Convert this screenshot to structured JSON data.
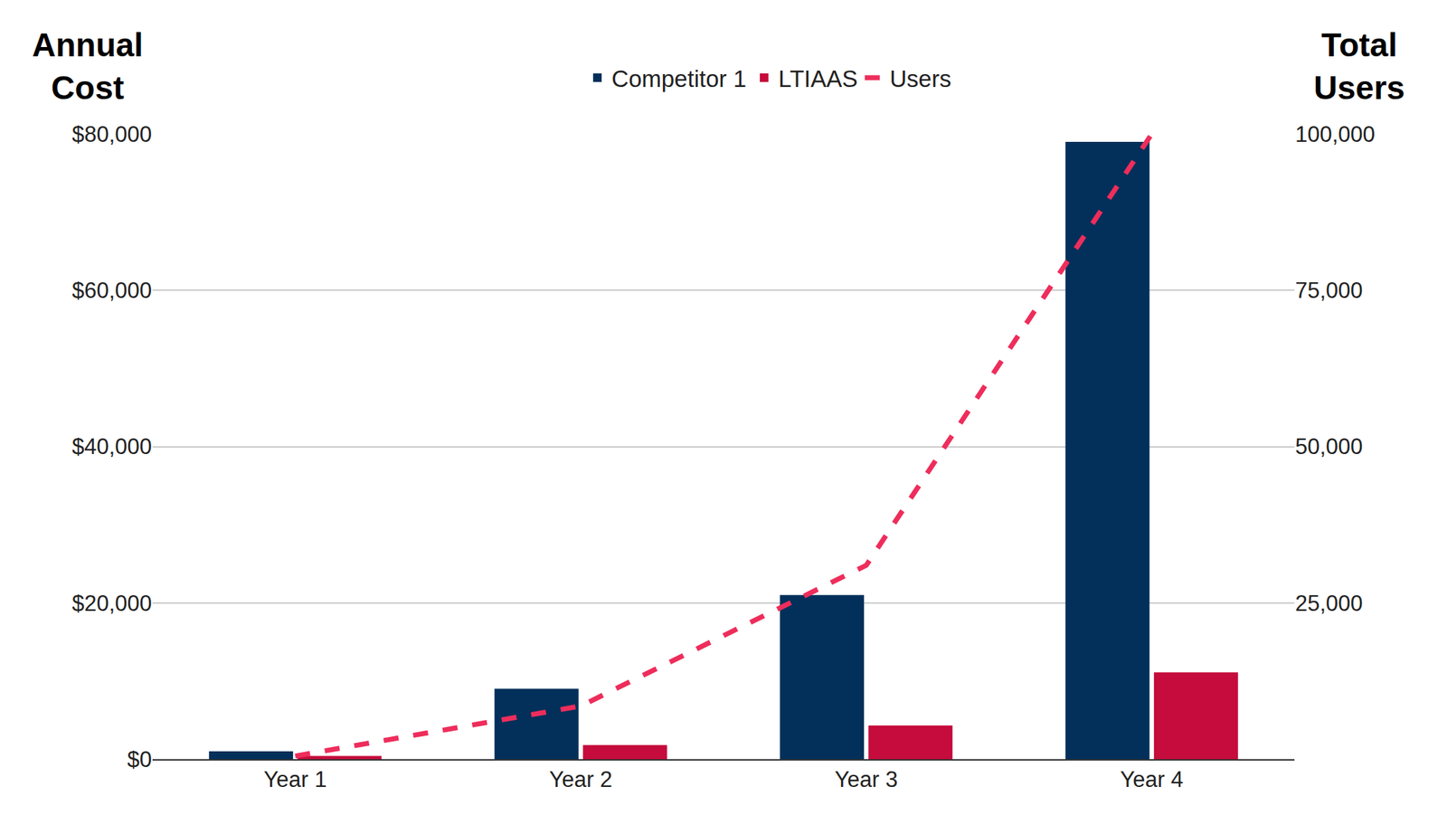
{
  "chart_data": {
    "type": "bar",
    "categories": [
      "Year 1",
      "Year 2",
      "Year 3",
      "Year 4"
    ],
    "series": [
      {
        "name": "Competitor 1",
        "color": "#03305a",
        "values": [
          1000,
          9000,
          21000,
          79000
        ]
      },
      {
        "name": "LTIAAS",
        "color": "#c50c3c",
        "values": [
          400,
          1800,
          4300,
          11100
        ]
      },
      {
        "name": "Users",
        "type": "line",
        "line_style": "dashed",
        "color": "#ee2d5b",
        "axis": "y2",
        "values": [
          500,
          8500,
          31000,
          100000
        ]
      }
    ],
    "y_label": "Annual Cost",
    "y2_label": "Total Users",
    "ylim": [
      0,
      80000
    ],
    "yticks": [
      {
        "value": 0,
        "label": "$0"
      },
      {
        "value": 20000,
        "label": "$20,000"
      },
      {
        "value": 40000,
        "label": "$40,000"
      },
      {
        "value": 60000,
        "label": "$60,000"
      },
      {
        "value": 80000,
        "label": "$80,000"
      }
    ],
    "y2lim": [
      0,
      100000
    ],
    "y2ticks": [
      {
        "value": 25000,
        "label": "25,000"
      },
      {
        "value": 50000,
        "label": "50,000"
      },
      {
        "value": 75000,
        "label": "75,000"
      },
      {
        "value": 100000,
        "label": "100,000"
      }
    ],
    "grid": true,
    "legend": "top"
  }
}
